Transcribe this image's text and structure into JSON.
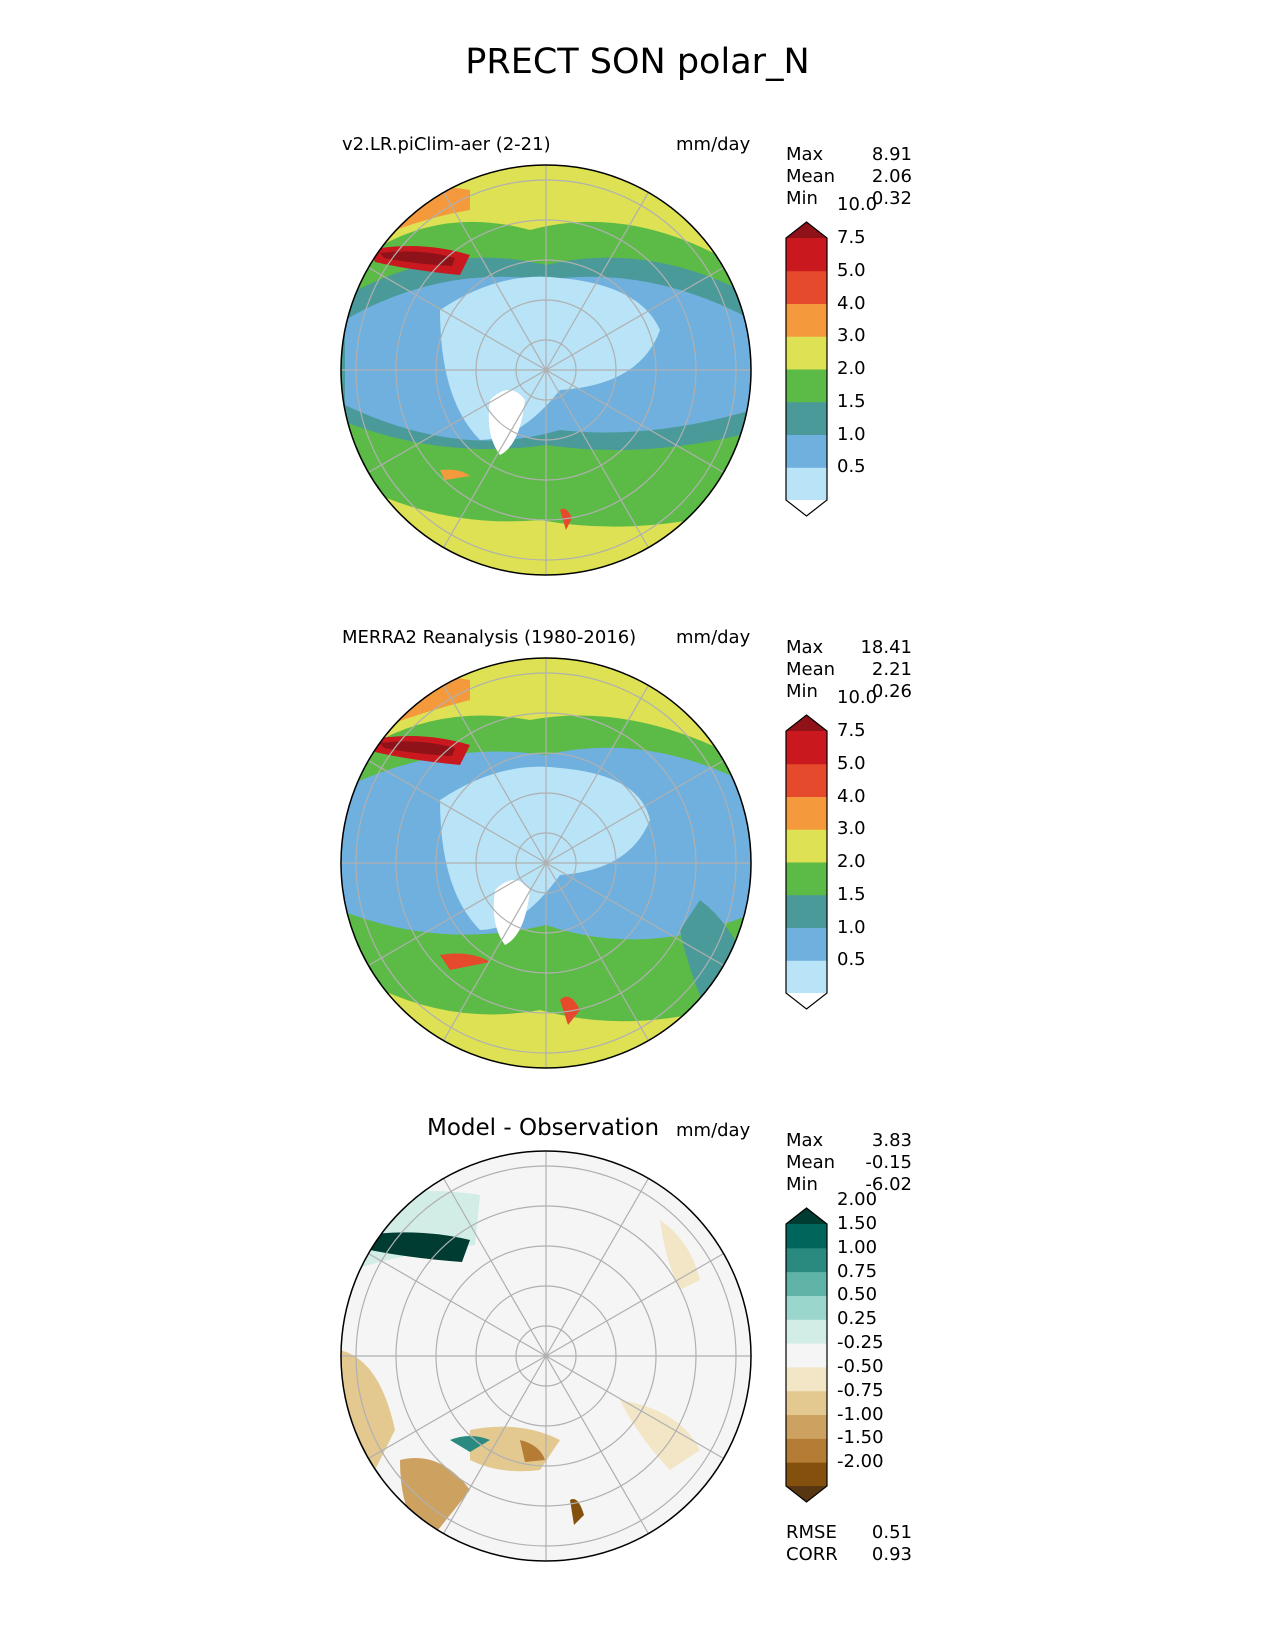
{
  "figure": {
    "title": "PRECT SON polar_N"
  },
  "panels": [
    {
      "title_left": "v2.LR.piClim-aer (2-21)",
      "units": "mm/day",
      "stats": [
        {
          "label": "Max",
          "value": "8.91"
        },
        {
          "label": "Mean",
          "value": "2.06"
        },
        {
          "label": "Min",
          "value": "0.32"
        }
      ],
      "colorbar": {
        "ticks": [
          "10.0",
          "7.5",
          "5.0",
          "4.0",
          "3.0",
          "2.0",
          "1.5",
          "1.0",
          "0.5"
        ],
        "colors": [
          "#ffffff",
          "#b9e3f6",
          "#6fb0de",
          "#4a9a9a",
          "#5cbb46",
          "#dde153",
          "#f59a3c",
          "#e54a2c",
          "#c9191f",
          "#8f1218"
        ]
      }
    },
    {
      "title_left": "MERRA2 Reanalysis (1980-2016)",
      "units": "mm/day",
      "stats": [
        {
          "label": "Max",
          "value": "18.41"
        },
        {
          "label": "Mean",
          "value": "2.21"
        },
        {
          "label": "Min",
          "value": "0.26"
        }
      ],
      "colorbar": {
        "ticks": [
          "10.0",
          "7.5",
          "5.0",
          "4.0",
          "3.0",
          "2.0",
          "1.5",
          "1.0",
          "0.5"
        ],
        "colors": [
          "#ffffff",
          "#b9e3f6",
          "#6fb0de",
          "#4a9a9a",
          "#5cbb46",
          "#dde153",
          "#f59a3c",
          "#e54a2c",
          "#c9191f",
          "#8f1218"
        ]
      }
    },
    {
      "title_center": "Model - Observation",
      "units": "mm/day",
      "stats": [
        {
          "label": "Max",
          "value": "3.83"
        },
        {
          "label": "Mean",
          "value": "-0.15"
        },
        {
          "label": "Min",
          "value": "-6.02"
        }
      ],
      "extra_stats": [
        {
          "label": "RMSE",
          "value": "0.51"
        },
        {
          "label": "CORR",
          "value": "0.93"
        }
      ],
      "colorbar": {
        "ticks": [
          "2.00",
          "1.50",
          "1.00",
          "0.75",
          "0.50",
          "0.25",
          "-0.25",
          "-0.50",
          "-0.75",
          "-1.00",
          "-1.50",
          "-2.00"
        ],
        "colors": [
          "#573611",
          "#83500e",
          "#b57c36",
          "#cda260",
          "#e3c990",
          "#f2e6c6",
          "#f5f5f5",
          "#d2ece6",
          "#9ad6cc",
          "#5fb3a7",
          "#2a8a80",
          "#00655a",
          "#003c31"
        ]
      }
    }
  ]
}
